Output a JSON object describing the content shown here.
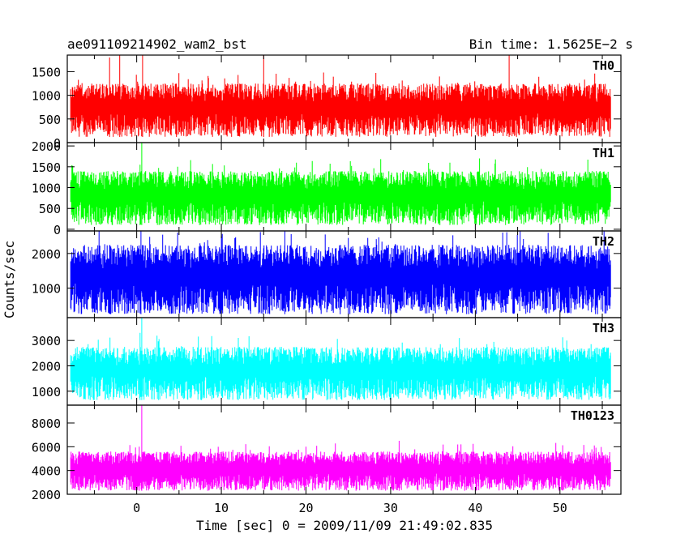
{
  "header": {
    "title": "ae091109214902_wam2_bst",
    "bin_time": "Bin time: 1.5625E−2 s"
  },
  "axes": {
    "ylabel": "Counts/sec",
    "xlabel": "Time [sec] 0 = 2009/11/09 21:49:02.835"
  },
  "chart_data": {
    "type": "line",
    "title": "ae091109214902_wam2_bst",
    "xlabel": "Time [sec] 0 = 2009/11/09 21:49:02.835",
    "ylabel": "Counts/sec",
    "xlim": [
      -8.2,
      57.2
    ],
    "data_range": [
      -7.8,
      56.0
    ],
    "xticks": [
      0,
      10,
      20,
      30,
      40,
      50
    ],
    "grid": false,
    "panels": [
      {
        "name": "TH0",
        "color": "#ff0000",
        "ylim": [
          0,
          1850
        ],
        "yticks": [
          0,
          500,
          1000,
          1500
        ],
        "typical_range": [
          120,
          1250
        ],
        "spikes": [
          [
            0.7,
            1850
          ],
          [
            -2.0,
            1850
          ],
          [
            15.0,
            1850
          ],
          [
            44.0,
            1850
          ],
          [
            -3.2,
            1800
          ]
        ]
      },
      {
        "name": "TH1",
        "color": "#00ff00",
        "ylim": [
          -40,
          2080
        ],
        "yticks": [
          0,
          500,
          1000,
          1500,
          2000
        ],
        "typical_range": [
          100,
          1400
        ],
        "spikes": [
          [
            0.6,
            2080
          ],
          [
            0.4,
            1550
          ],
          [
            40.5,
            1700
          ],
          [
            37.0,
            1600
          ]
        ]
      },
      {
        "name": "TH2",
        "color": "#0000ff",
        "ylim": [
          150,
          2650
        ],
        "yticks": [
          1000,
          2000
        ],
        "typical_range": [
          250,
          2250
        ],
        "spikes": [
          [
            0.5,
            2650
          ],
          [
            17.5,
            2650
          ],
          [
            25.0,
            2450
          ],
          [
            10.0,
            2500
          ]
        ]
      },
      {
        "name": "TH3",
        "color": "#00ffff",
        "ylim": [
          450,
          3900
        ],
        "yticks": [
          1000,
          2000,
          3000
        ],
        "typical_range": [
          650,
          2750
        ],
        "spikes": [
          [
            0.6,
            3900
          ],
          [
            0.4,
            3300
          ],
          [
            12.0,
            3100
          ]
        ]
      },
      {
        "name": "TH0123",
        "color": "#ff00ff",
        "ylim": [
          2000,
          9500
        ],
        "yticks": [
          2000,
          4000,
          6000,
          8000
        ],
        "typical_range": [
          2300,
          5600
        ],
        "spikes": [
          [
            0.6,
            9500
          ],
          [
            31.0,
            6500
          ],
          [
            20.0,
            6000
          ],
          [
            0.3,
            6000
          ]
        ]
      }
    ]
  }
}
